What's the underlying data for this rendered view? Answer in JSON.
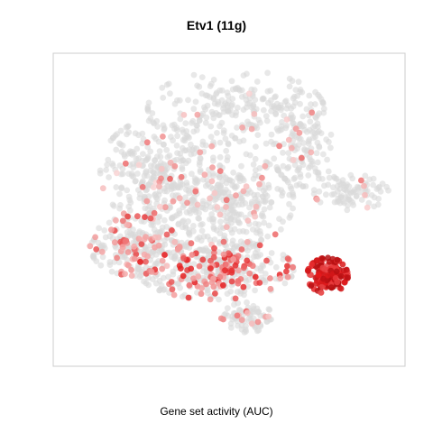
{
  "chart_data": {
    "type": "scatter",
    "title": "Etv1 (11g)",
    "xlabel": "Gene set activity (AUC)",
    "ylabel": "",
    "axes_visible": false,
    "grid": false,
    "legend": "none",
    "colors": {
      "background_point": "#d9d9d9",
      "low": "#fbe0e0",
      "mid": "#f29a9a",
      "high": "#e41a1c",
      "max": "#b50f12",
      "frame": "#cccccc"
    },
    "xlim": [
      0,
      100
    ],
    "ylim": [
      0,
      100
    ],
    "clusters": [
      {
        "name": "top",
        "cx": 52,
        "cy": 84,
        "rx": 26,
        "ry": 13,
        "n": 260,
        "active_frac": 0.03,
        "mean_auc": 0.3
      },
      {
        "name": "upper-left",
        "cx": 27,
        "cy": 63,
        "rx": 15,
        "ry": 17,
        "n": 240,
        "active_frac": 0.05,
        "mean_auc": 0.3
      },
      {
        "name": "center",
        "cx": 47,
        "cy": 53,
        "rx": 22,
        "ry": 17,
        "n": 420,
        "active_frac": 0.08,
        "mean_auc": 0.35
      },
      {
        "name": "right-upper",
        "cx": 72,
        "cy": 70,
        "rx": 9,
        "ry": 12,
        "n": 110,
        "active_frac": 0.06,
        "mean_auc": 0.3
      },
      {
        "name": "far-right",
        "cx": 86,
        "cy": 56,
        "rx": 11,
        "ry": 6,
        "n": 90,
        "active_frac": 0.03,
        "mean_auc": 0.3
      },
      {
        "name": "lower-left",
        "cx": 22,
        "cy": 38,
        "rx": 13,
        "ry": 10,
        "n": 220,
        "active_frac": 0.22,
        "mean_auc": 0.45
      },
      {
        "name": "bottom-center",
        "cx": 46,
        "cy": 30,
        "rx": 23,
        "ry": 10,
        "n": 360,
        "active_frac": 0.3,
        "mean_auc": 0.55
      },
      {
        "name": "bottom-tail",
        "cx": 55,
        "cy": 14,
        "rx": 8,
        "ry": 5,
        "n": 80,
        "active_frac": 0.15,
        "mean_auc": 0.4
      },
      {
        "name": "hotspot",
        "cx": 79,
        "cy": 28,
        "rx": 6,
        "ry": 6,
        "n": 150,
        "active_frac": 0.92,
        "mean_auc": 0.85
      }
    ]
  }
}
